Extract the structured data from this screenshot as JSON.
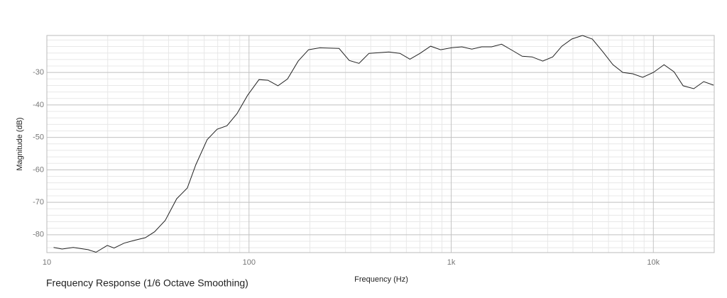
{
  "chart_data": {
    "type": "line",
    "title": "Frequency Response (1/6 Octave Smoothing)",
    "x_label": "Frequency (Hz)",
    "y_label": "Magnitude (dB)",
    "x_log": true,
    "grid": true,
    "xlim": [
      10,
      20000
    ],
    "ylim": [
      -85.5,
      -18.6
    ],
    "xticks": [
      10,
      100,
      {
        "value": 1000,
        "label": "1k"
      },
      {
        "value": 10000,
        "label": "10k"
      }
    ],
    "yticks": [
      -30,
      -40,
      -50,
      -60,
      -70,
      -80
    ],
    "x": [
      10.8,
      11.9,
      13.5,
      16,
      17.5,
      19.9,
      21.5,
      24.1,
      27.2,
      30.7,
      34.1,
      38.5,
      43.9,
      49.5,
      54.6,
      62.1,
      69.5,
      77.8,
      87.2,
      98.4,
      112,
      124,
      139,
      155,
      175,
      197,
      224,
      279,
      313,
      350,
      392,
      491,
      558,
      625,
      701,
      791,
      886,
      1000,
      1129,
      1265,
      1416,
      1585,
      1775,
      2004,
      2244,
      2512,
      2837,
      3178,
      3527,
      3949,
      4458,
      4990,
      5636,
      6310,
      7063,
      7909,
      8850,
      10000,
      11290,
      12650,
      14030,
      15850,
      17740,
      19860
    ],
    "series": [
      {
        "color": "#222222",
        "values": [
          -83.9,
          -84.4,
          -83.9,
          -84.6,
          -85.4,
          -83.3,
          -84.1,
          -82.6,
          -81.7,
          -80.9,
          -79.1,
          -75.6,
          -68.9,
          -65.6,
          -58.4,
          -50.7,
          -47.5,
          -46.4,
          -42.7,
          -37.0,
          -32.2,
          -32.4,
          -34.1,
          -32.0,
          -26.5,
          -23.0,
          -22.4,
          -22.6,
          -26.3,
          -27.2,
          -24.1,
          -23.7,
          -24.1,
          -25.9,
          -24.1,
          -21.9,
          -23.0,
          -22.4,
          -22.1,
          -22.8,
          -22.1,
          -22.1,
          -21.3,
          -23.2,
          -25.0,
          -25.2,
          -26.5,
          -25.2,
          -21.9,
          -19.7,
          -18.6,
          -19.7,
          -23.7,
          -27.6,
          -30.0,
          -30.4,
          -31.5,
          -30.0,
          -27.6,
          -29.8,
          -34.1,
          -35.0,
          -32.8,
          -33.9
        ]
      }
    ]
  }
}
